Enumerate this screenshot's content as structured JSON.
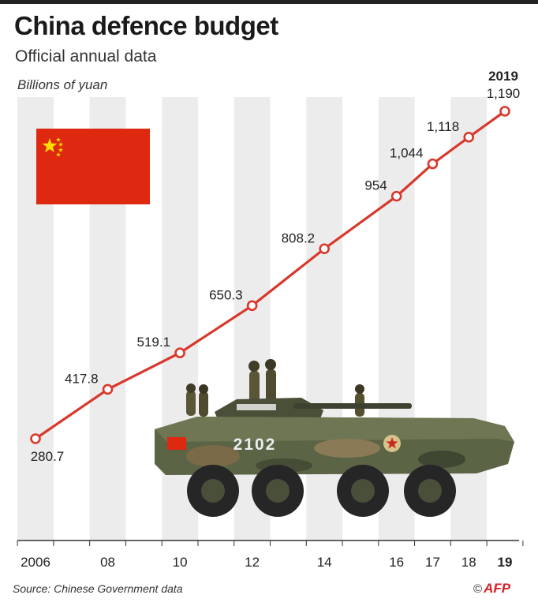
{
  "header": {
    "title": "China defence budget",
    "subtitle": "Official annual data",
    "unit": "Billions of yuan"
  },
  "footer": {
    "source": "Source: Chinese Government data",
    "copyright": "©",
    "brand": "AFP"
  },
  "colors": {
    "line": "#d8382c",
    "stripe": "#ececec",
    "flag_red": "#de2910",
    "flag_star": "#ffde00"
  },
  "illustrations": {
    "flag": "china-flag-icon",
    "vehicle": "armoured-vehicle-photo",
    "vehicle_number": "2102"
  },
  "chart_data": {
    "type": "line",
    "title": "China defence budget",
    "subtitle": "Official annual data",
    "ylabel": "Billions of yuan",
    "xlabel": "",
    "x": [
      2006,
      2008,
      2010,
      2012,
      2014,
      2016,
      2017,
      2018,
      2019
    ],
    "values": [
      280.7,
      417.8,
      519.1,
      650.3,
      808.2,
      954,
      1044,
      1118,
      1190
    ],
    "value_labels": [
      "280.7",
      "417.8",
      "519.1",
      "650.3",
      "808.2",
      "954",
      "1,044",
      "1,118",
      "1,190"
    ],
    "tick_labels": [
      "2006",
      "08",
      "10",
      "12",
      "14",
      "16",
      "17",
      "18",
      "19"
    ],
    "highlight_year_label": "2019",
    "xlim": [
      2006,
      2019
    ],
    "ylim": [
      0,
      1200
    ],
    "grid": false
  }
}
